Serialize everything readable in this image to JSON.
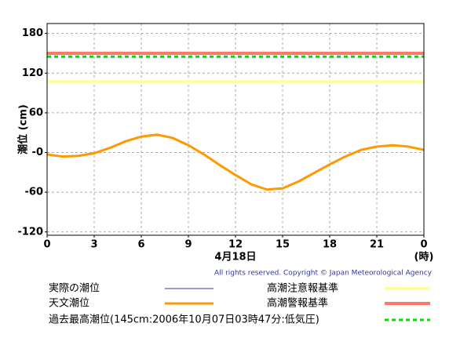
{
  "chart_data": {
    "type": "line",
    "ylabel": "潮位 (cm)",
    "xlabel": "4月18日",
    "xunit": "(時)",
    "x": [
      0,
      1,
      2,
      3,
      4,
      5,
      6,
      7,
      8,
      9,
      10,
      11,
      12,
      13,
      14,
      15,
      16,
      17,
      18,
      19,
      20,
      21,
      22,
      23,
      24
    ],
    "xlim": [
      0,
      24
    ],
    "xticks": [
      0,
      3,
      6,
      9,
      12,
      15,
      18,
      21,
      {
        "value": 24,
        "label": "0"
      }
    ],
    "ylim": [
      -125,
      195
    ],
    "yticks": [
      -120,
      -60,
      {
        "value": 0,
        "label": "-0"
      },
      60,
      120,
      180
    ],
    "grid": true,
    "series": [
      {
        "name": "実際の潮位",
        "color": "#333399",
        "values": [
          null,
          null,
          null,
          null,
          null,
          null,
          null,
          null,
          null,
          null,
          null,
          null,
          null,
          null,
          null,
          null,
          null,
          null,
          null,
          null,
          null,
          null,
          null,
          null,
          null
        ]
      },
      {
        "name": "天文潮位",
        "color": "#ff9900",
        "values": [
          -3,
          -6,
          -5,
          -1,
          7,
          17,
          24,
          27,
          22,
          11,
          -3,
          -19,
          -34,
          -48,
          -56,
          -54,
          -44,
          -31,
          -18,
          -6,
          4,
          9,
          11,
          9,
          4
        ]
      }
    ],
    "reference_lines": [
      {
        "name": "高潮注意報基準",
        "value": 107,
        "color": "#ffff99"
      },
      {
        "name": "高潮警報基準",
        "value": 150,
        "color": "#ff7766"
      },
      {
        "name": "過去最高潮位(145cm:2006年10月07日03時47分:低気圧)",
        "value": 145,
        "color": "#00dd00",
        "dashed": true
      }
    ],
    "copyright": "All rights reserved. Copyright © Japan Meteorological Agency"
  }
}
